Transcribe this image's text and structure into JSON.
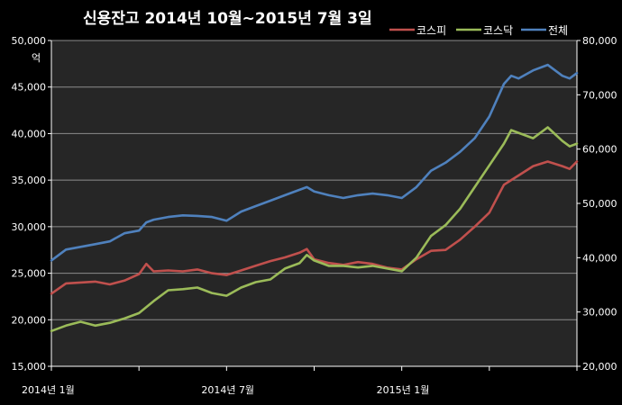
{
  "chart_data": {
    "type": "line",
    "title": "신용잔고 2014년 10월~2015년 7월 3일",
    "y_unit_label": "억",
    "x_tick_labels": [
      "2014년 1월",
      "2014년 7월",
      "2015년 1월"
    ],
    "x_ticks": [
      0,
      24,
      48
    ],
    "x_range": [
      0,
      72
    ],
    "ylim_left": [
      15000,
      50000
    ],
    "y_ticks_left": [
      15000,
      20000,
      25000,
      30000,
      35000,
      40000,
      45000,
      50000
    ],
    "y_tick_labels_left": [
      "15,000",
      "20,000",
      "25,000",
      "30,000",
      "35,000",
      "40,000",
      "45,000",
      "50,000"
    ],
    "ylim_right": [
      20000,
      80000
    ],
    "y_ticks_right": [
      20000,
      30000,
      40000,
      50000,
      60000,
      70000,
      80000
    ],
    "y_tick_labels_right": [
      "20,000",
      "30,000",
      "40,000",
      "50,000",
      "60,000",
      "70,000",
      "80,000"
    ],
    "grid": true,
    "legend_position": "top-right",
    "series": [
      {
        "name": "코스피",
        "color": "#c0504d",
        "axis": "left",
        "x": [
          0,
          2,
          4,
          6,
          8,
          10,
          12,
          13,
          14,
          16,
          18,
          20,
          22,
          24,
          26,
          28,
          30,
          32,
          34,
          35,
          36,
          38,
          40,
          42,
          44,
          46,
          48,
          50,
          52,
          54,
          56,
          58,
          60,
          62,
          63,
          64,
          66,
          68,
          70,
          71,
          72
        ],
        "values": [
          22800,
          23900,
          24000,
          24100,
          23800,
          24200,
          24900,
          26000,
          25200,
          25300,
          25200,
          25400,
          25000,
          24800,
          25300,
          25800,
          26300,
          26700,
          27200,
          27600,
          26500,
          26100,
          25900,
          26200,
          26000,
          25600,
          25400,
          26500,
          27400,
          27500,
          28600,
          30000,
          31500,
          34500,
          35000,
          35500,
          36500,
          37000,
          36500,
          36200,
          37000
        ]
      },
      {
        "name": "코스닥",
        "color": "#9bbb59",
        "axis": "right",
        "x": [
          0,
          2,
          4,
          6,
          8,
          10,
          12,
          14,
          16,
          18,
          20,
          22,
          24,
          26,
          28,
          30,
          32,
          34,
          35,
          36,
          38,
          40,
          42,
          44,
          46,
          48,
          50,
          52,
          54,
          56,
          58,
          60,
          62,
          63,
          64,
          66,
          68,
          70,
          71,
          72
        ],
        "values": [
          26500,
          27500,
          28200,
          27500,
          28000,
          28800,
          29800,
          32000,
          34000,
          34200,
          34500,
          33500,
          33000,
          34500,
          35500,
          36000,
          38000,
          39000,
          40500,
          39500,
          38500,
          38500,
          38200,
          38500,
          38000,
          37500,
          40000,
          44000,
          46000,
          49000,
          53000,
          57000,
          61000,
          63500,
          63000,
          62000,
          64000,
          61500,
          60500,
          61000
        ]
      },
      {
        "name": "전체",
        "color": "#4f81bd",
        "axis": "right",
        "x": [
          0,
          2,
          4,
          6,
          8,
          10,
          12,
          13,
          14,
          16,
          18,
          20,
          22,
          24,
          26,
          28,
          30,
          32,
          34,
          35,
          36,
          38,
          40,
          42,
          44,
          46,
          48,
          50,
          52,
          54,
          56,
          58,
          60,
          62,
          63,
          64,
          66,
          68,
          70,
          71,
          72
        ],
        "values": [
          39500,
          41500,
          42000,
          42500,
          43000,
          44500,
          45000,
          46500,
          47000,
          47500,
          47800,
          47700,
          47500,
          46800,
          48500,
          49500,
          50500,
          51500,
          52500,
          53000,
          52200,
          51500,
          51000,
          51500,
          51800,
          51500,
          51000,
          53000,
          56000,
          57500,
          59500,
          62000,
          66000,
          72000,
          73500,
          73000,
          74500,
          75500,
          73500,
          73000,
          74000
        ]
      }
    ]
  }
}
